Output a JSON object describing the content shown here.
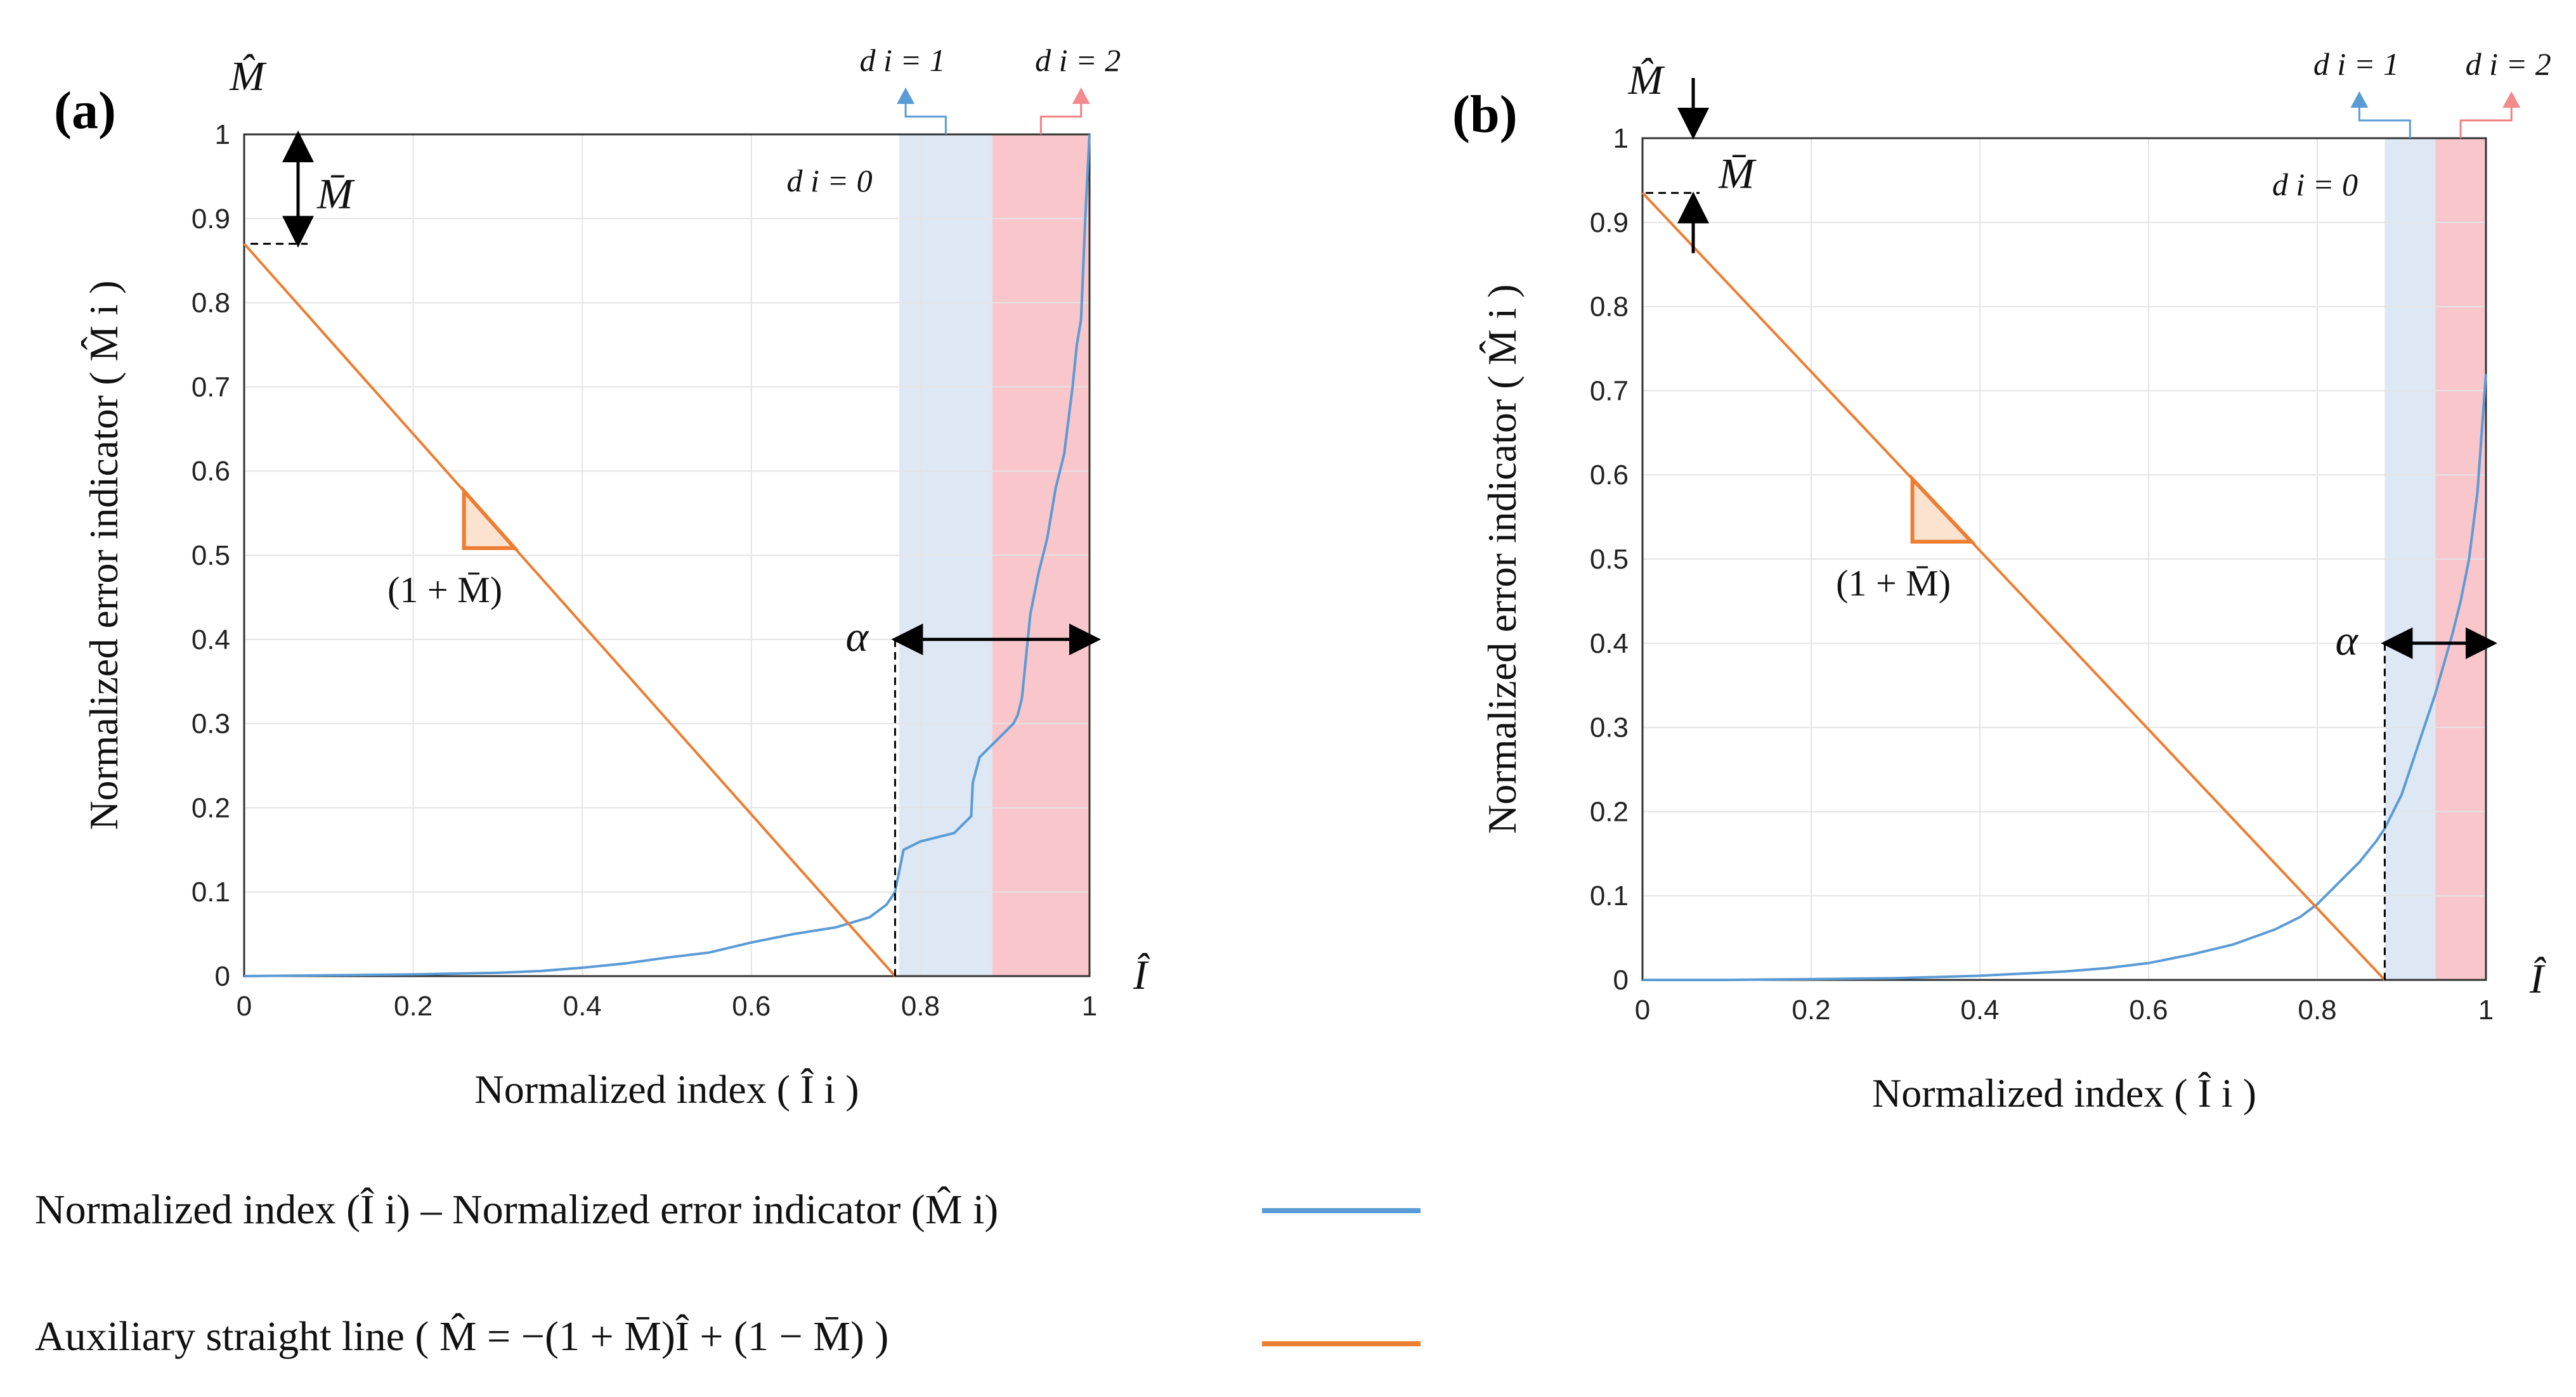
{
  "chart_data": [
    {
      "type": "line",
      "panel_label": "(a)",
      "xlabel": "Normalized index ( Î i )",
      "ylabel": "Normalized error indicator ( M̂ i )",
      "x_axis_symbol": "Î",
      "y_axis_symbol": "M̂",
      "xlim": [
        0,
        1
      ],
      "ylim": [
        0,
        1
      ],
      "xticks": [
        "0",
        "0.2",
        "0.4",
        "0.6",
        "0.8",
        "1"
      ],
      "yticks": [
        "0",
        "0.1",
        "0.2",
        "0.3",
        "0.4",
        "0.5",
        "0.6",
        "0.7",
        "0.8",
        "0.9",
        "1"
      ],
      "grid": true,
      "m_bar": 0.13,
      "alpha_label": "α",
      "alpha_start": 0.77,
      "alpha_level": 0.4,
      "mbar_label": "M̄",
      "slope_label": "(1 + M̄)",
      "slope_triangle": [
        0.26,
        0.32
      ],
      "regions": [
        {
          "label": "d_i = 0",
          "from": 0,
          "to": 0.775,
          "color": "#ffffff"
        },
        {
          "label": "d_i = 1",
          "from": 0.775,
          "to": 0.885,
          "color": "#dde8f4"
        },
        {
          "label": "d_i = 2",
          "from": 0.885,
          "to": 1.0,
          "color": "#f8c6cb"
        }
      ],
      "series": [
        {
          "name": "Normalized index (Î i) – Normalized error indicator (M̂ i)",
          "color": "#5b9bd5",
          "x": [
            0,
            0.2,
            0.3,
            0.35,
            0.4,
            0.45,
            0.5,
            0.55,
            0.6,
            0.65,
            0.7,
            0.74,
            0.76,
            0.77,
            0.78,
            0.8,
            0.84,
            0.86,
            0.862,
            0.87,
            0.88,
            0.89,
            0.9,
            0.91,
            0.915,
            0.92,
            0.93,
            0.94,
            0.95,
            0.96,
            0.97,
            0.98,
            0.985,
            0.99,
            0.995,
            1.0
          ],
          "y": [
            0,
            0.002,
            0.004,
            0.006,
            0.01,
            0.015,
            0.022,
            0.028,
            0.04,
            0.05,
            0.058,
            0.07,
            0.085,
            0.1,
            0.15,
            0.16,
            0.17,
            0.19,
            0.23,
            0.26,
            0.27,
            0.28,
            0.29,
            0.3,
            0.31,
            0.33,
            0.43,
            0.48,
            0.52,
            0.58,
            0.62,
            0.7,
            0.75,
            0.78,
            0.9,
            1.0
          ]
        },
        {
          "name": "Auxiliary straight line ( M̂ = −(1 + M̄)Î + (1 − M̄) )",
          "color": "#ed7d31",
          "x": [
            0,
            0.77
          ],
          "y": [
            0.87,
            0
          ]
        }
      ],
      "region_labels": [
        "d i = 0",
        "d i = 1",
        "d i = 2"
      ]
    },
    {
      "type": "line",
      "panel_label": "(b)",
      "xlabel": "Normalized index ( Î i )",
      "ylabel": "Normalized error indicator ( M̂ i )",
      "x_axis_symbol": "Î",
      "y_axis_symbol": "M̂",
      "xlim": [
        0,
        1
      ],
      "ylim": [
        0,
        1
      ],
      "xticks": [
        "0",
        "0.2",
        "0.4",
        "0.6",
        "0.8",
        "1"
      ],
      "yticks": [
        "0",
        "0.1",
        "0.2",
        "0.3",
        "0.4",
        "0.5",
        "0.6",
        "0.7",
        "0.8",
        "0.9",
        "1"
      ],
      "grid": true,
      "m_bar": 0.065,
      "alpha_label": "α",
      "alpha_start": 0.88,
      "alpha_level": 0.4,
      "mbar_label": "M̄",
      "slope_label": "(1 + M̄)",
      "slope_triangle": [
        0.32,
        0.39
      ],
      "regions": [
        {
          "label": "d_i = 0",
          "from": 0,
          "to": 0.88,
          "color": "#ffffff"
        },
        {
          "label": "d_i = 1",
          "from": 0.88,
          "to": 0.94,
          "color": "#dde8f4"
        },
        {
          "label": "d_i = 2",
          "from": 0.94,
          "to": 1.0,
          "color": "#f8c6cb"
        }
      ],
      "series": [
        {
          "name": "Normalized index (Î i) – Normalized error indicator (M̂ i)",
          "color": "#5b9bd5",
          "x": [
            0,
            0.1,
            0.2,
            0.3,
            0.4,
            0.5,
            0.55,
            0.6,
            0.65,
            0.7,
            0.75,
            0.78,
            0.8,
            0.83,
            0.85,
            0.87,
            0.88,
            0.9,
            0.92,
            0.94,
            0.96,
            0.97,
            0.98,
            0.99,
            0.995,
            1.0
          ],
          "y": [
            0,
            0.0,
            0.001,
            0.002,
            0.005,
            0.01,
            0.014,
            0.02,
            0.03,
            0.042,
            0.06,
            0.075,
            0.09,
            0.12,
            0.14,
            0.165,
            0.18,
            0.22,
            0.28,
            0.34,
            0.41,
            0.45,
            0.5,
            0.58,
            0.65,
            0.72
          ]
        },
        {
          "name": "Auxiliary straight line ( M̂ = −(1 + M̄)Î + (1 − M̄) )",
          "color": "#ed7d31",
          "x": [
            0,
            0.88
          ],
          "y": [
            0.935,
            0
          ]
        }
      ],
      "region_labels": [
        "d i = 0",
        "d i = 1",
        "d i = 2"
      ]
    }
  ],
  "legend": {
    "entries": [
      {
        "text": "Normalized index (Î i) – Normalized error indicator (M̂ i)",
        "color": "#5b9bd5"
      },
      {
        "text": "Auxiliary straight line ( M̂ = −(1 + M̄)Î + (1 − M̄) )",
        "color": "#ed7d31"
      }
    ]
  }
}
